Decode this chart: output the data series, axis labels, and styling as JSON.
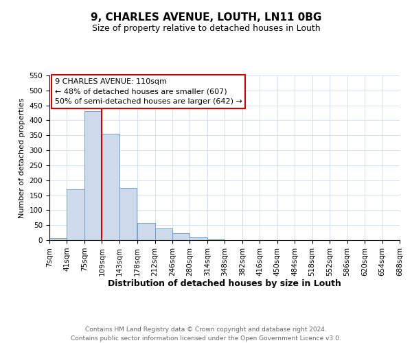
{
  "title": "9, CHARLES AVENUE, LOUTH, LN11 0BG",
  "subtitle": "Size of property relative to detached houses in Louth",
  "xlabel": "Distribution of detached houses by size in Louth",
  "ylabel": "Number of detached properties",
  "bin_edges": [
    7,
    41,
    75,
    109,
    143,
    178,
    212,
    246,
    280,
    314,
    348,
    382,
    416,
    450,
    484,
    518,
    552,
    586,
    620,
    654,
    688
  ],
  "bar_heights": [
    7,
    170,
    430,
    355,
    175,
    57,
    40,
    22,
    10,
    2,
    0,
    0,
    0,
    0,
    0,
    0,
    1,
    0,
    0,
    1
  ],
  "bar_color": "#ccdaeb",
  "bar_edgecolor": "#6699cc",
  "redline_x": 109,
  "ylim": [
    0,
    550
  ],
  "annotation_text": "9 CHARLES AVENUE: 110sqm\n← 48% of detached houses are smaller (607)\n50% of semi-detached houses are larger (642) →",
  "annotation_box_edgecolor": "#cc0000",
  "redline_color": "#cc0000",
  "footer_line1": "Contains HM Land Registry data © Crown copyright and database right 2024.",
  "footer_line2": "Contains public sector information licensed under the Open Government Licence v3.0.",
  "tick_labels": [
    "7sqm",
    "41sqm",
    "75sqm",
    "109sqm",
    "143sqm",
    "178sqm",
    "212sqm",
    "246sqm",
    "280sqm",
    "314sqm",
    "348sqm",
    "382sqm",
    "416sqm",
    "450sqm",
    "484sqm",
    "518sqm",
    "552sqm",
    "586sqm",
    "620sqm",
    "654sqm",
    "688sqm"
  ],
  "yticks": [
    0,
    50,
    100,
    150,
    200,
    250,
    300,
    350,
    400,
    450,
    500,
    550
  ],
  "background_color": "#ffffff",
  "grid_color": "#c5d5e5",
  "title_fontsize": 11,
  "subtitle_fontsize": 9,
  "ylabel_fontsize": 8,
  "xlabel_fontsize": 9,
  "tick_fontsize": 7.5,
  "annotation_fontsize": 8,
  "footer_fontsize": 6.5,
  "footer_color": "#666666"
}
